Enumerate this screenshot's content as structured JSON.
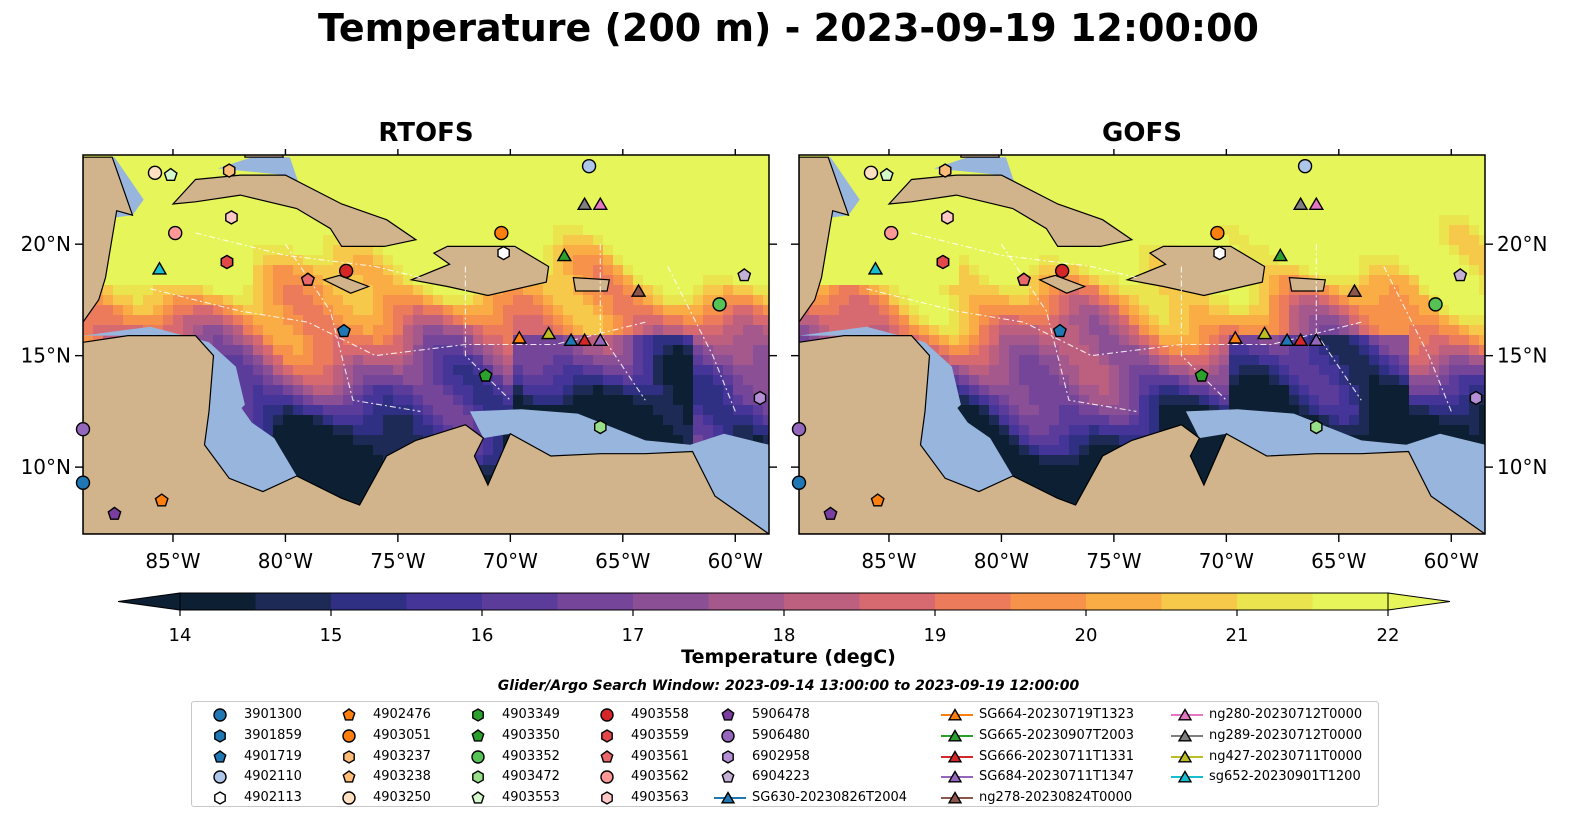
{
  "title": "Temperature (200 m) - 2023-09-19 12:00:00",
  "panels": [
    {
      "id": "rtofs",
      "title": "RTOFS"
    },
    {
      "id": "gofs",
      "title": "GOFS"
    }
  ],
  "axes": {
    "lon_range": [
      -89,
      -58.5
    ],
    "lat_range": [
      7,
      24
    ],
    "x_ticks": [
      "85°W",
      "80°W",
      "75°W",
      "70°W",
      "65°W",
      "60°W"
    ],
    "x_tick_values": [
      -85,
      -80,
      -75,
      -70,
      -65,
      -60
    ],
    "y_ticks": [
      "20°N",
      "15°N",
      "10°N"
    ],
    "y_tick_values": [
      20,
      15,
      10
    ]
  },
  "colorbar": {
    "label": "Temperature (degC)",
    "range": [
      14,
      22
    ],
    "ticks": [
      "14",
      "15",
      "16",
      "17",
      "18",
      "19",
      "20",
      "21",
      "22"
    ],
    "colormap": [
      "#0c1f33",
      "#1d2a55",
      "#2f2f83",
      "#463598",
      "#5b3c9a",
      "#744599",
      "#8b4f95",
      "#a4588c",
      "#bd6080",
      "#d66a70",
      "#eb7b5a",
      "#f7924a",
      "#fbad45",
      "#f7c94a",
      "#eae44f",
      "#e6f55a"
    ]
  },
  "search_window": "Glider/Argo Search Window: 2023-09-14 13:00:00 to 2023-09-19 12:00:00",
  "legend": [
    {
      "label": "3901300",
      "marker": "circle",
      "color": "#1f77b4"
    },
    {
      "label": "3901859",
      "marker": "hexagon",
      "color": "#1f77b4"
    },
    {
      "label": "4901719",
      "marker": "pentagon",
      "color": "#1f77b4"
    },
    {
      "label": "4902110",
      "marker": "circle",
      "color": "#aec7e8"
    },
    {
      "label": "4902113",
      "marker": "hexagon",
      "color": "#ffffff"
    },
    {
      "label": "4902476",
      "marker": "pentagon",
      "color": "#ff7f0e"
    },
    {
      "label": "4903051",
      "marker": "circle",
      "color": "#ff7f0e"
    },
    {
      "label": "4903237",
      "marker": "hexagon",
      "color": "#ffbb78"
    },
    {
      "label": "4903238",
      "marker": "pentagon",
      "color": "#ffbb78"
    },
    {
      "label": "4903250",
      "marker": "circle",
      "color": "#ffe0c0"
    },
    {
      "label": "4903349",
      "marker": "hexagon",
      "color": "#2ca02c"
    },
    {
      "label": "4903350",
      "marker": "pentagon",
      "color": "#2ca02c"
    },
    {
      "label": "4903352",
      "marker": "circle",
      "color": "#55c255"
    },
    {
      "label": "4903472",
      "marker": "hexagon",
      "color": "#98df8a"
    },
    {
      "label": "4903553",
      "marker": "pentagon",
      "color": "#d4f7cc"
    },
    {
      "label": "4903558",
      "marker": "circle",
      "color": "#d62728"
    },
    {
      "label": "4903559",
      "marker": "hexagon",
      "color": "#e2474a"
    },
    {
      "label": "4903561",
      "marker": "pentagon",
      "color": "#e9686a"
    },
    {
      "label": "4903562",
      "marker": "circle",
      "color": "#ff9896"
    },
    {
      "label": "4903563",
      "marker": "hexagon",
      "color": "#ffc8c6"
    },
    {
      "label": "5906478",
      "marker": "pentagon",
      "color": "#7a3ea1"
    },
    {
      "label": "5906480",
      "marker": "circle",
      "color": "#9467bd"
    },
    {
      "label": "6902958",
      "marker": "hexagon",
      "color": "#b48fd6"
    },
    {
      "label": "6904223",
      "marker": "pentagon",
      "color": "#c5b0d5"
    },
    {
      "label": "SG630-20230826T2004",
      "marker": "triangle",
      "color": "#1f77b4"
    },
    {
      "label": "SG664-20230719T1323",
      "marker": "triangle",
      "color": "#ff7f0e"
    },
    {
      "label": "SG665-20230907T2003",
      "marker": "triangle",
      "color": "#2ca02c"
    },
    {
      "label": "SG666-20230711T1331",
      "marker": "triangle",
      "color": "#d62728"
    },
    {
      "label": "SG684-20230711T1347",
      "marker": "triangle",
      "color": "#9467bd"
    },
    {
      "label": "ng278-20230824T0000",
      "marker": "triangle",
      "color": "#8c564b"
    },
    {
      "label": "ng280-20230712T0000",
      "marker": "triangle",
      "color": "#e377c2"
    },
    {
      "label": "ng289-20230712T0000",
      "marker": "triangle",
      "color": "#7f7f7f"
    },
    {
      "label": "ng427-20230711T0000",
      "marker": "triangle",
      "color": "#bcbd22"
    },
    {
      "label": "sg652-20230901T1200",
      "marker": "triangle",
      "color": "#17becf"
    }
  ],
  "platform_positions": [
    {
      "id": "3901300",
      "lon": -89,
      "lat": 9.3
    },
    {
      "id": "3901859",
      "lon": -70.4,
      "lat": 20.5
    },
    {
      "id": "4901719",
      "lon": -77.4,
      "lat": 16.1
    },
    {
      "id": "4902110",
      "lon": -66.5,
      "lat": 23.5
    },
    {
      "id": "4902113",
      "lon": -70.3,
      "lat": 19.6
    },
    {
      "id": "4902476",
      "lon": -85.5,
      "lat": 8.5
    },
    {
      "id": "4903051",
      "lon": -70.4,
      "lat": 20.5
    },
    {
      "id": "4903237",
      "lon": -82.5,
      "lat": 23.3
    },
    {
      "id": "4903238",
      "lon": -79,
      "lat": 18.4
    },
    {
      "id": "4903250",
      "lon": -85.8,
      "lat": 23.2
    },
    {
      "id": "4903349",
      "lon": -82.6,
      "lat": 19.2
    },
    {
      "id": "4903350",
      "lon": -71.1,
      "lat": 14.1
    },
    {
      "id": "4903352",
      "lon": -60.7,
      "lat": 17.3
    },
    {
      "id": "4903472",
      "lon": -66,
      "lat": 11.8
    },
    {
      "id": "4903553",
      "lon": -85.1,
      "lat": 23.1
    },
    {
      "id": "4903558",
      "lon": -77.3,
      "lat": 18.8
    },
    {
      "id": "4903559",
      "lon": -82.6,
      "lat": 19.2
    },
    {
      "id": "4903561",
      "lon": -79,
      "lat": 18.4
    },
    {
      "id": "4903562",
      "lon": -84.9,
      "lat": 20.5
    },
    {
      "id": "4903563",
      "lon": -82.4,
      "lat": 21.2
    },
    {
      "id": "5906478",
      "lon": -87.6,
      "lat": 7.9
    },
    {
      "id": "5906480",
      "lon": -89,
      "lat": 11.7
    },
    {
      "id": "6902958",
      "lon": -58.9,
      "lat": 13.1
    },
    {
      "id": "6904223",
      "lon": -59.6,
      "lat": 18.6
    },
    {
      "id": "SG630-20230826T2004",
      "lon": -67.3,
      "lat": 15.7
    },
    {
      "id": "SG664-20230719T1323",
      "lon": -69.6,
      "lat": 15.8
    },
    {
      "id": "SG665-20230907T2003",
      "lon": -67.6,
      "lat": 19.5
    },
    {
      "id": "SG666-20230711T1331",
      "lon": -66.7,
      "lat": 15.7
    },
    {
      "id": "SG684-20230711T1347",
      "lon": -66,
      "lat": 15.7
    },
    {
      "id": "ng278-20230824T0000",
      "lon": -64.3,
      "lat": 17.9
    },
    {
      "id": "ng280-20230712T0000",
      "lon": -66,
      "lat": 21.8
    },
    {
      "id": "ng289-20230712T0000",
      "lon": -66.7,
      "lat": 21.8
    },
    {
      "id": "ng427-20230711T0000",
      "lon": -68.3,
      "lat": 16
    },
    {
      "id": "sg652-20230901T1200",
      "lon": -85.6,
      "lat": 18.9
    }
  ]
}
